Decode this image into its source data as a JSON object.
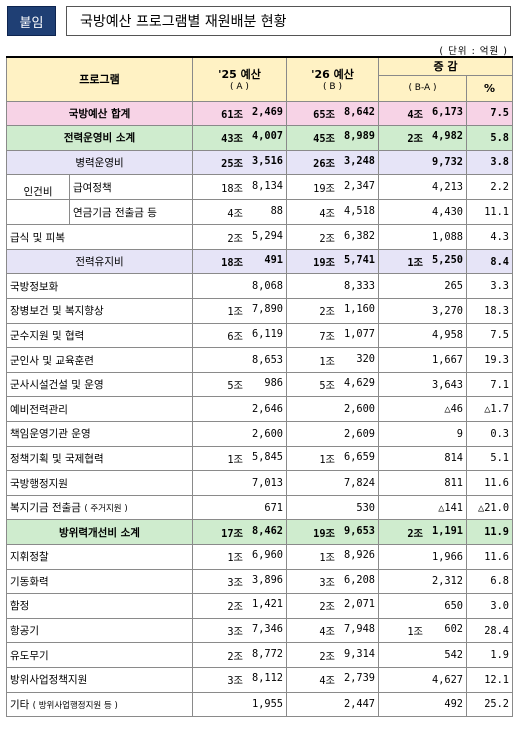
{
  "badge": "붙임",
  "title": "국방예산 프로그램별 재원배분 현황",
  "unit": "( 단위 : 억원 )",
  "headers": {
    "program": "프로그램",
    "y25": "'25 예산",
    "y25_sub": "( A )",
    "y26": "'26 예산",
    "y26_sub": "( B )",
    "diff": "증 감",
    "diff_sub": "( B-A )",
    "pct": "%"
  },
  "rows": [
    {
      "label": "국방예산 합계",
      "a_jo": "61조",
      "a": "2,469",
      "b_jo": "65조",
      "b": "8,642",
      "d_jo": "4조",
      "d": "6,173",
      "p": "7.5"
    },
    {
      "label": "전력운영비 소계",
      "a_jo": "43조",
      "a": "4,007",
      "b_jo": "45조",
      "b": "8,989",
      "d_jo": "2조",
      "d": "4,982",
      "p": "5.8"
    },
    {
      "label": "병력운영비",
      "a_jo": "25조",
      "a": "3,516",
      "b_jo": "26조",
      "b": "3,248",
      "d_jo": "",
      "d": "9,732",
      "p": "3.8"
    },
    {
      "group": "인건비",
      "label": "급여정책",
      "a_jo": "18조",
      "a": "8,134",
      "b_jo": "19조",
      "b": "2,347",
      "d_jo": "",
      "d": "4,213",
      "p": "2.2"
    },
    {
      "label": "연금기금 전출금 등",
      "a_jo": "4조",
      "a": "88",
      "b_jo": "4조",
      "b": "4,518",
      "d_jo": "",
      "d": "4,430",
      "p": "11.1"
    },
    {
      "label": "급식 및 피복",
      "a_jo": "2조",
      "a": "5,294",
      "b_jo": "2조",
      "b": "6,382",
      "d_jo": "",
      "d": "1,088",
      "p": "4.3"
    },
    {
      "label": "전력유지비",
      "a_jo": "18조",
      "a": "491",
      "b_jo": "19조",
      "b": "5,741",
      "d_jo": "1조",
      "d": "5,250",
      "p": "8.4"
    },
    {
      "label": "국방정보화",
      "a_jo": "",
      "a": "8,068",
      "b_jo": "",
      "b": "8,333",
      "d_jo": "",
      "d": "265",
      "p": "3.3"
    },
    {
      "label": "장병보건 및 복지향상",
      "a_jo": "1조",
      "a": "7,890",
      "b_jo": "2조",
      "b": "1,160",
      "d_jo": "",
      "d": "3,270",
      "p": "18.3"
    },
    {
      "label": "군수지원 및 협력",
      "a_jo": "6조",
      "a": "6,119",
      "b_jo": "7조",
      "b": "1,077",
      "d_jo": "",
      "d": "4,958",
      "p": "7.5"
    },
    {
      "label": "군인사 및 교육훈련",
      "a_jo": "",
      "a": "8,653",
      "b_jo": "1조",
      "b": "320",
      "d_jo": "",
      "d": "1,667",
      "p": "19.3"
    },
    {
      "label": "군사시설건설 및 운영",
      "a_jo": "5조",
      "a": "986",
      "b_jo": "5조",
      "b": "4,629",
      "d_jo": "",
      "d": "3,643",
      "p": "7.1"
    },
    {
      "label": "예비전력관리",
      "a_jo": "",
      "a": "2,646",
      "b_jo": "",
      "b": "2,600",
      "d_jo": "",
      "d": "△46",
      "p": "△1.7"
    },
    {
      "label": "책임운영기관 운영",
      "a_jo": "",
      "a": "2,600",
      "b_jo": "",
      "b": "2,609",
      "d_jo": "",
      "d": "9",
      "p": "0.3"
    },
    {
      "label": "정책기획 및 국제협력",
      "a_jo": "1조",
      "a": "5,845",
      "b_jo": "1조",
      "b": "6,659",
      "d_jo": "",
      "d": "814",
      "p": "5.1"
    },
    {
      "label": "국방행정지원",
      "a_jo": "",
      "a": "7,013",
      "b_jo": "",
      "b": "7,824",
      "d_jo": "",
      "d": "811",
      "p": "11.6"
    },
    {
      "label": "복지기금 전출금",
      "label_note": "( 주거지원 )",
      "a_jo": "",
      "a": "671",
      "b_jo": "",
      "b": "530",
      "d_jo": "",
      "d": "△141",
      "p": "△21.0"
    },
    {
      "label": "방위력개선비 소계",
      "a_jo": "17조",
      "a": "8,462",
      "b_jo": "19조",
      "b": "9,653",
      "d_jo": "2조",
      "d": "1,191",
      "p": "11.9"
    },
    {
      "label": "지휘정찰",
      "a_jo": "1조",
      "a": "6,960",
      "b_jo": "1조",
      "b": "8,926",
      "d_jo": "",
      "d": "1,966",
      "p": "11.6"
    },
    {
      "label": "기동화력",
      "a_jo": "3조",
      "a": "3,896",
      "b_jo": "3조",
      "b": "6,208",
      "d_jo": "",
      "d": "2,312",
      "p": "6.8"
    },
    {
      "label": "함정",
      "a_jo": "2조",
      "a": "1,421",
      "b_jo": "2조",
      "b": "2,071",
      "d_jo": "",
      "d": "650",
      "p": "3.0"
    },
    {
      "label": "항공기",
      "a_jo": "3조",
      "a": "7,346",
      "b_jo": "4조",
      "b": "7,948",
      "d_jo": "1조",
      "d": "602",
      "p": "28.4"
    },
    {
      "label": "유도무기",
      "a_jo": "2조",
      "a": "8,772",
      "b_jo": "2조",
      "b": "9,314",
      "d_jo": "",
      "d": "542",
      "p": "1.9"
    },
    {
      "label": "방위사업정책지원",
      "a_jo": "3조",
      "a": "8,112",
      "b_jo": "4조",
      "b": "2,739",
      "d_jo": "",
      "d": "4,627",
      "p": "12.1"
    },
    {
      "label": "기타",
      "label_note": "( 방위사업행정지원 등 )",
      "a_jo": "",
      "a": "1,955",
      "b_jo": "",
      "b": "2,447",
      "d_jo": "",
      "d": "492",
      "p": "25.2"
    }
  ]
}
